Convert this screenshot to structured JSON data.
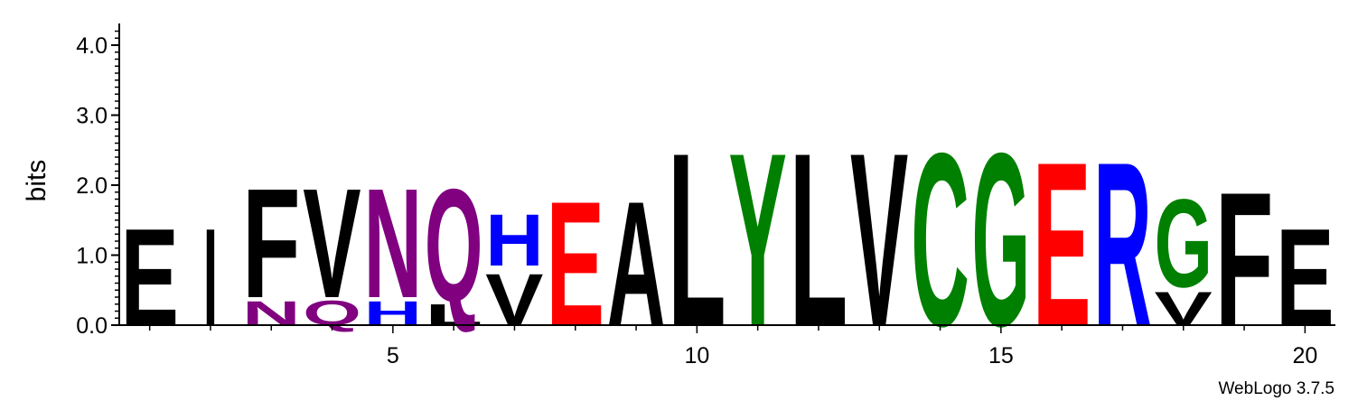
{
  "chart_data": {
    "type": "sequence-logo",
    "ylabel": "bits",
    "ylim": [
      0,
      4.3
    ],
    "xlim": [
      0.5,
      20.5
    ],
    "y_ticks": [
      "0.0",
      "1.0",
      "2.0",
      "3.0",
      "4.0"
    ],
    "y_tick_values": [
      0,
      1,
      2,
      3,
      4
    ],
    "x_ticks": [
      "5",
      "10",
      "15",
      "20"
    ],
    "x_tick_values": [
      5,
      10,
      15,
      20
    ],
    "positions": [
      {
        "pos": 1,
        "stack": [
          {
            "letter": "E",
            "bits": 1.6,
            "color": "#000000"
          }
        ]
      },
      {
        "pos": 2,
        "stack": [
          {
            "letter": "I",
            "bits": 1.6,
            "color": "#000000"
          }
        ]
      },
      {
        "pos": 3,
        "stack": [
          {
            "letter": "N",
            "bits": 0.4,
            "color": "#800080"
          },
          {
            "letter": "F",
            "bits": 1.8,
            "color": "#000000"
          }
        ]
      },
      {
        "pos": 4,
        "stack": [
          {
            "letter": "Q",
            "bits": 0.4,
            "color": "#800080"
          },
          {
            "letter": "V",
            "bits": 1.8,
            "color": "#000000"
          }
        ]
      },
      {
        "pos": 5,
        "stack": [
          {
            "letter": "H",
            "bits": 0.4,
            "color": "#0000ff"
          },
          {
            "letter": "N",
            "bits": 1.8,
            "color": "#800080"
          }
        ]
      },
      {
        "pos": 6,
        "stack": [
          {
            "letter": "L",
            "bits": 0.35,
            "color": "#000000"
          },
          {
            "letter": "Q",
            "bits": 1.85,
            "color": "#800080"
          }
        ]
      },
      {
        "pos": 7,
        "stack": [
          {
            "letter": "V",
            "bits": 0.85,
            "color": "#000000"
          },
          {
            "letter": "H",
            "bits": 0.85,
            "color": "#0000ff"
          }
        ]
      },
      {
        "pos": 8,
        "stack": [
          {
            "letter": "E",
            "bits": 2.05,
            "color": "#ff0000"
          }
        ]
      },
      {
        "pos": 9,
        "stack": [
          {
            "letter": "A",
            "bits": 2.05,
            "color": "#000000"
          }
        ]
      },
      {
        "pos": 10,
        "stack": [
          {
            "letter": "L",
            "bits": 2.85,
            "color": "#000000"
          }
        ]
      },
      {
        "pos": 11,
        "stack": [
          {
            "letter": "Y",
            "bits": 2.85,
            "color": "#008000"
          }
        ]
      },
      {
        "pos": 12,
        "stack": [
          {
            "letter": "L",
            "bits": 2.85,
            "color": "#000000"
          }
        ]
      },
      {
        "pos": 13,
        "stack": [
          {
            "letter": "V",
            "bits": 2.85,
            "color": "#000000"
          }
        ]
      },
      {
        "pos": 14,
        "stack": [
          {
            "letter": "C",
            "bits": 2.85,
            "color": "#008000"
          }
        ]
      },
      {
        "pos": 15,
        "stack": [
          {
            "letter": "G",
            "bits": 2.85,
            "color": "#008000"
          }
        ]
      },
      {
        "pos": 16,
        "stack": [
          {
            "letter": "E",
            "bits": 2.7,
            "color": "#ff0000"
          }
        ]
      },
      {
        "pos": 17,
        "stack": [
          {
            "letter": "R",
            "bits": 2.7,
            "color": "#0000ff"
          }
        ]
      },
      {
        "pos": 18,
        "stack": [
          {
            "letter": "V",
            "bits": 0.55,
            "color": "#000000"
          },
          {
            "letter": "G",
            "bits": 1.45,
            "color": "#008000"
          }
        ]
      },
      {
        "pos": 19,
        "stack": [
          {
            "letter": "F",
            "bits": 2.2,
            "color": "#000000"
          }
        ]
      },
      {
        "pos": 20,
        "stack": [
          {
            "letter": "E",
            "bits": 1.6,
            "color": "#000000"
          }
        ]
      }
    ]
  },
  "footer": {
    "credit": "WebLogo 3.7.5"
  }
}
